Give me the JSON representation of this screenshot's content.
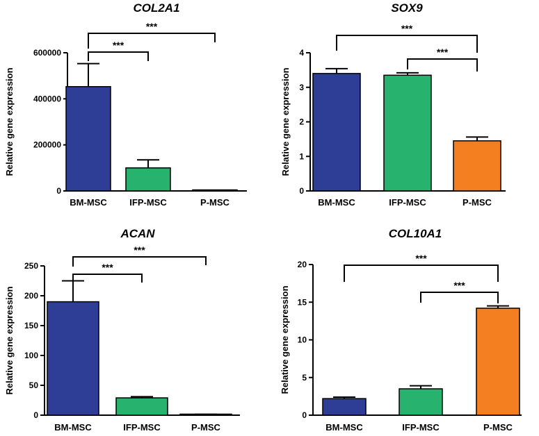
{
  "chart_data": [
    {
      "type": "bar",
      "title": "COL2A1",
      "ylabel": "Relative gene expression",
      "categories": [
        "BM-MSC",
        "IFP-MSC",
        "P-MSC"
      ],
      "values": [
        453000,
        100000,
        0
      ],
      "errors": [
        100000,
        35000,
        0
      ],
      "colors": [
        "#2E3D96",
        "#27B36E",
        "#F47F20"
      ],
      "ylim": [
        0,
        600000
      ],
      "yticks": [
        0,
        200000,
        400000,
        600000
      ],
      "ytick_labels": [
        "0",
        "200000",
        "400000",
        "600000"
      ],
      "significance": [
        {
          "from": 0,
          "to": 1,
          "label": "***"
        },
        {
          "from": 0,
          "to": 2,
          "label": "***"
        }
      ]
    },
    {
      "type": "bar",
      "title": "SOX9",
      "ylabel": "Relative gene expression",
      "categories": [
        "BM-MSC",
        "IFP-MSC",
        "P-MSC"
      ],
      "values": [
        3.4,
        3.35,
        1.45
      ],
      "errors": [
        0.14,
        0.07,
        0.11
      ],
      "colors": [
        "#2E3D96",
        "#27B36E",
        "#F47F20"
      ],
      "ylim": [
        0,
        4
      ],
      "yticks": [
        0,
        1,
        2,
        3,
        4
      ],
      "ytick_labels": [
        "0",
        "1",
        "2",
        "3",
        "4"
      ],
      "significance": [
        {
          "from": 1,
          "to": 2,
          "label": "***"
        },
        {
          "from": 0,
          "to": 2,
          "label": "***"
        }
      ]
    },
    {
      "type": "bar",
      "title": "ACAN",
      "ylabel": "Relative gene expression",
      "categories": [
        "BM-MSC",
        "IFP-MSC",
        "P-MSC"
      ],
      "values": [
        190,
        29,
        1
      ],
      "errors": [
        35,
        2,
        0.5
      ],
      "colors": [
        "#2E3D96",
        "#27B36E",
        "#F47F20"
      ],
      "ylim": [
        0,
        250
      ],
      "yticks": [
        0,
        50,
        100,
        150,
        200,
        250
      ],
      "ytick_labels": [
        "0",
        "50",
        "100",
        "150",
        "200",
        "250"
      ],
      "significance": [
        {
          "from": 0,
          "to": 1,
          "label": "***"
        },
        {
          "from": 0,
          "to": 2,
          "label": "***"
        }
      ]
    },
    {
      "type": "bar",
      "title": "COL10A1",
      "ylabel": "Relative gene expression",
      "categories": [
        "BM-MSC",
        "IFP-MSC",
        "P-MSC"
      ],
      "values": [
        2.2,
        3.5,
        14.2
      ],
      "errors": [
        0.2,
        0.4,
        0.3
      ],
      "colors": [
        "#2E3D96",
        "#27B36E",
        "#F47F20"
      ],
      "ylim": [
        0,
        20
      ],
      "yticks": [
        0,
        5,
        10,
        15,
        20
      ],
      "ytick_labels": [
        "0",
        "5",
        "10",
        "15",
        "20"
      ],
      "significance": [
        {
          "from": 1,
          "to": 2,
          "label": "***"
        },
        {
          "from": 0,
          "to": 2,
          "label": "***"
        }
      ]
    }
  ]
}
